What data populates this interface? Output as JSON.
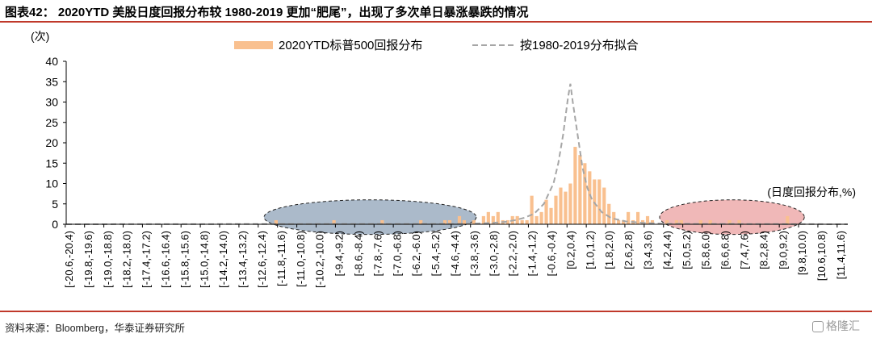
{
  "figure": {
    "title": "图表42： 2020YTD 美股日度回报分布较 1980-2019 更加“肥尾”，出现了多次单日暴涨暴跌的情况",
    "source": "资料来源：Bloomberg，华泰证券研究所",
    "watermark": "格隆汇"
  },
  "colors": {
    "rule": "#c0392b",
    "bars": "#f9c08f",
    "fit_line": "#a6a6a6",
    "left_ellipse_fill": "#8fa3b8",
    "right_ellipse_fill": "#eba0a0"
  },
  "chart_data": {
    "type": "bar",
    "ylabel": "(次)",
    "xlabel": "(日度回报分布,%)",
    "ylim": [
      0,
      40
    ],
    "yticks": [
      0,
      5,
      10,
      15,
      20,
      25,
      30,
      35,
      40
    ],
    "legend_position": "top-center",
    "tick_labels": [
      "[-20.6,-20.4)",
      "[-19.8,-19.6)",
      "[-19.0,-18.8)",
      "[-18.2,-18.0)",
      "[-17.4,-17.2)",
      "[-16.6,-16.4)",
      "[-15.8,-15.6)",
      "[-15.0,-14.8)",
      "[-14.2,-14.0)",
      "[-13.4,-13.2)",
      "[-12.6,-12.4)",
      "[-11.8,-11.6)",
      "[-11.0,-10.8)",
      "[-10.2,-10.0)",
      "[-9.4,-9.2)",
      "[-8.6,-8.4)",
      "[-7.8,-7.6)",
      "[-7.0,-6.8)",
      "[-6.2,-6.0)",
      "[-5.4,-5.2)",
      "[-4.6,-4.4)",
      "[-3.8,-3.6)",
      "[-3.0,-2.8)",
      "[-2.2,-2.0)",
      "[-1.4,-1.2)",
      "[-0.6,-0.4)",
      "[0.2,0.4)",
      "[1.0,1.2)",
      "[1.8,2.0)",
      "[2.6,2.8)",
      "[3.4,3.6)",
      "[4.2,4.4)",
      "[5.0,5.2)",
      "[5.8,6.0)",
      "[6.6,6.8)",
      "[7.4,7.6)",
      "[8.2,8.4)",
      "[9.0,9.2)",
      "[9.8,10.0)",
      "[10.6,10.8)",
      "[11.4,11.6)"
    ],
    "x_start": -20.6,
    "bin_width": 0.2,
    "series": [
      {
        "name": "2020YTD标普500回报分布",
        "bars": [
          {
            "x": -12.0,
            "y": 1
          },
          {
            "x": -9.6,
            "y": 1
          },
          {
            "x": -7.6,
            "y": 1
          },
          {
            "x": -6.0,
            "y": 1
          },
          {
            "x": -5.0,
            "y": 1
          },
          {
            "x": -4.8,
            "y": 1
          },
          {
            "x": -4.4,
            "y": 2
          },
          {
            "x": -4.2,
            "y": 1
          },
          {
            "x": -3.8,
            "y": 1
          },
          {
            "x": -3.4,
            "y": 2
          },
          {
            "x": -3.2,
            "y": 3
          },
          {
            "x": -3.0,
            "y": 2
          },
          {
            "x": -2.8,
            "y": 3
          },
          {
            "x": -2.6,
            "y": 1
          },
          {
            "x": -2.4,
            "y": 1
          },
          {
            "x": -2.2,
            "y": 2
          },
          {
            "x": -2.0,
            "y": 2
          },
          {
            "x": -1.8,
            "y": 1
          },
          {
            "x": -1.6,
            "y": 1
          },
          {
            "x": -1.4,
            "y": 7
          },
          {
            "x": -1.2,
            "y": 2
          },
          {
            "x": -1.0,
            "y": 3
          },
          {
            "x": -0.8,
            "y": 6
          },
          {
            "x": -0.6,
            "y": 4
          },
          {
            "x": -0.4,
            "y": 7
          },
          {
            "x": -0.2,
            "y": 9
          },
          {
            "x": 0.0,
            "y": 8
          },
          {
            "x": 0.2,
            "y": 10
          },
          {
            "x": 0.4,
            "y": 19
          },
          {
            "x": 0.6,
            "y": 17
          },
          {
            "x": 0.8,
            "y": 15
          },
          {
            "x": 1.0,
            "y": 13
          },
          {
            "x": 1.2,
            "y": 11
          },
          {
            "x": 1.4,
            "y": 11
          },
          {
            "x": 1.6,
            "y": 9
          },
          {
            "x": 1.8,
            "y": 5
          },
          {
            "x": 2.0,
            "y": 3
          },
          {
            "x": 2.2,
            "y": 1
          },
          {
            "x": 2.4,
            "y": 1
          },
          {
            "x": 2.6,
            "y": 3
          },
          {
            "x": 2.8,
            "y": 1
          },
          {
            "x": 3.0,
            "y": 3
          },
          {
            "x": 3.2,
            "y": 1
          },
          {
            "x": 3.4,
            "y": 2
          },
          {
            "x": 3.6,
            "y": 1
          },
          {
            "x": 4.2,
            "y": 1
          },
          {
            "x": 4.6,
            "y": 1
          },
          {
            "x": 4.8,
            "y": 1
          },
          {
            "x": 5.6,
            "y": 1
          },
          {
            "x": 6.0,
            "y": 1
          },
          {
            "x": 6.8,
            "y": 1
          },
          {
            "x": 7.2,
            "y": 1
          },
          {
            "x": 9.2,
            "y": 2
          }
        ]
      },
      {
        "name": "按1980-2019分布拟合",
        "type": "line",
        "style": "dashed",
        "points": [
          {
            "x": -20.6,
            "y": 0
          },
          {
            "x": -4.0,
            "y": 0.1
          },
          {
            "x": -3.0,
            "y": 0.3
          },
          {
            "x": -2.4,
            "y": 0.6
          },
          {
            "x": -2.0,
            "y": 1.0
          },
          {
            "x": -1.6,
            "y": 1.6
          },
          {
            "x": -1.2,
            "y": 2.6
          },
          {
            "x": -0.8,
            "y": 5.0
          },
          {
            "x": -0.4,
            "y": 10.0
          },
          {
            "x": -0.2,
            "y": 15.0
          },
          {
            "x": 0.0,
            "y": 22.0
          },
          {
            "x": 0.2,
            "y": 31.0
          },
          {
            "x": 0.3,
            "y": 34.5
          },
          {
            "x": 0.4,
            "y": 30.0
          },
          {
            "x": 0.6,
            "y": 22.0
          },
          {
            "x": 0.8,
            "y": 14.0
          },
          {
            "x": 1.0,
            "y": 9.0
          },
          {
            "x": 1.2,
            "y": 6.0
          },
          {
            "x": 1.6,
            "y": 3.0
          },
          {
            "x": 2.0,
            "y": 1.5
          },
          {
            "x": 2.6,
            "y": 0.7
          },
          {
            "x": 3.4,
            "y": 0.3
          },
          {
            "x": 4.4,
            "y": 0.1
          },
          {
            "x": 11.8,
            "y": 0
          }
        ]
      }
    ],
    "annotations": [
      {
        "type": "ellipse",
        "x_range": [
          -12.4,
          -3.6
        ],
        "y_range": [
          -2.5,
          6
        ],
        "color": "left_ellipse_fill"
      },
      {
        "type": "ellipse",
        "x_range": [
          4.0,
          10.0
        ],
        "y_range": [
          -2.5,
          6
        ],
        "color": "right_ellipse_fill"
      }
    ]
  }
}
